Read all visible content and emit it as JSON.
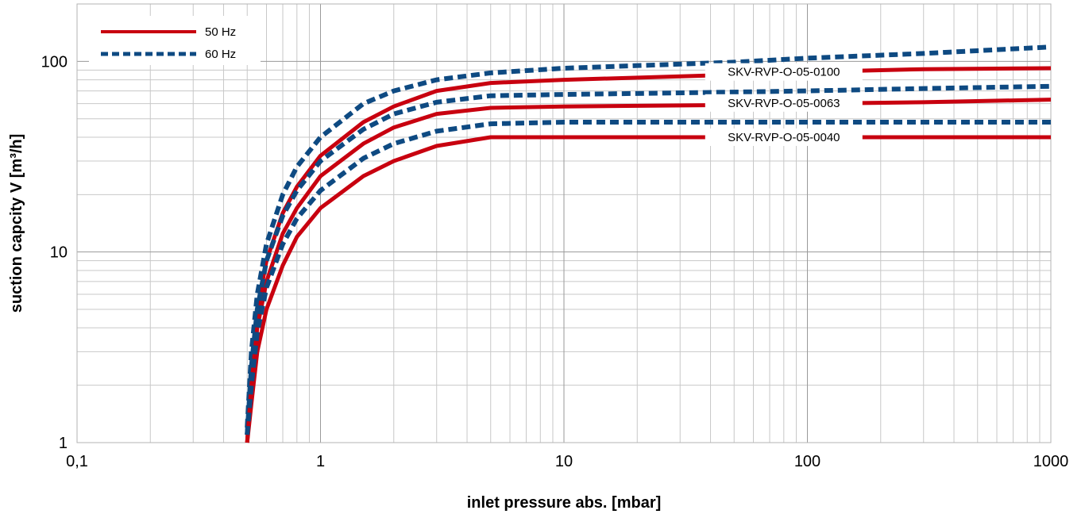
{
  "chart_data": {
    "type": "line",
    "x_scale": "log",
    "y_scale": "log",
    "xlim": [
      0.1,
      1000
    ],
    "ylim": [
      1,
      200
    ],
    "grid": true,
    "xlabel": "inlet pressure abs. [mbar]",
    "ylabel": "suction capcity V [m³/h]",
    "x_tick_labels": [
      {
        "value": 0.1,
        "label": "0,1"
      },
      {
        "value": 1,
        "label": "1"
      },
      {
        "value": 10,
        "label": "10"
      },
      {
        "value": 100,
        "label": "100"
      },
      {
        "value": 1000,
        "label": "1000"
      }
    ],
    "y_tick_labels": [
      {
        "value": 1,
        "label": "1"
      },
      {
        "value": 10,
        "label": "10"
      },
      {
        "value": 100,
        "label": "100"
      }
    ],
    "legend": {
      "placement": "top-left",
      "entries": [
        {
          "label": "50 Hz",
          "color": "#c8000f",
          "style": "solid"
        },
        {
          "label": "60 Hz",
          "color": "#0e4a82",
          "style": "dashed"
        }
      ]
    },
    "series": [
      {
        "group": "SKV-RVP-O-05-0100",
        "legend_entry": "50 Hz",
        "color": "#c8000f",
        "style": "solid",
        "x": [
          0.5,
          0.52,
          0.55,
          0.6,
          0.7,
          0.8,
          1,
          1.5,
          2,
          3,
          5,
          10,
          50,
          100,
          300,
          1000
        ],
        "y": [
          1,
          2.5,
          5,
          9,
          16,
          22,
          32,
          48,
          58,
          70,
          77,
          80,
          85,
          88,
          91,
          92
        ]
      },
      {
        "group": "SKV-RVP-O-05-0100",
        "legend_entry": "60 Hz",
        "color": "#0e4a82",
        "style": "dashed",
        "x": [
          0.5,
          0.52,
          0.55,
          0.6,
          0.7,
          0.8,
          1,
          1.5,
          2,
          3,
          5,
          10,
          50,
          100,
          300,
          1000
        ],
        "y": [
          1.2,
          3,
          6,
          11,
          20,
          28,
          40,
          60,
          70,
          80,
          87,
          92,
          99,
          104,
          110,
          119
        ]
      },
      {
        "group": "SKV-RVP-O-05-0063",
        "legend_entry": "50 Hz",
        "color": "#c8000f",
        "style": "solid",
        "x": [
          0.5,
          0.52,
          0.55,
          0.6,
          0.7,
          0.8,
          1,
          1.5,
          2,
          3,
          5,
          10,
          50,
          100,
          300,
          1000
        ],
        "y": [
          1,
          2,
          4,
          7,
          12.5,
          17,
          25,
          37,
          45,
          53,
          57,
          58,
          59,
          60,
          61,
          63
        ]
      },
      {
        "group": "SKV-RVP-O-05-0063",
        "legend_entry": "60 Hz",
        "color": "#0e4a82",
        "style": "dashed",
        "x": [
          0.5,
          0.52,
          0.55,
          0.6,
          0.7,
          0.8,
          1,
          1.5,
          2,
          3,
          5,
          10,
          50,
          100,
          300,
          1000
        ],
        "y": [
          1.1,
          2.5,
          5,
          9,
          15.5,
          21,
          30,
          44,
          53,
          61,
          66,
          67,
          69,
          70,
          72,
          74
        ]
      },
      {
        "group": "SKV-RVP-O-05-0040",
        "legend_entry": "50 Hz",
        "color": "#c8000f",
        "style": "solid",
        "x": [
          0.5,
          0.52,
          0.55,
          0.6,
          0.7,
          0.8,
          1,
          1.5,
          2,
          3,
          5,
          10,
          50,
          100,
          300,
          1000
        ],
        "y": [
          1,
          1.6,
          3,
          5,
          8.5,
          12,
          17,
          25,
          30,
          36,
          40,
          40,
          40,
          40,
          40,
          40
        ]
      },
      {
        "group": "SKV-RVP-O-05-0040",
        "legend_entry": "60 Hz",
        "color": "#0e4a82",
        "style": "dashed",
        "x": [
          0.5,
          0.52,
          0.55,
          0.6,
          0.7,
          0.8,
          1,
          1.5,
          2,
          3,
          5,
          10,
          50,
          100,
          300,
          1000
        ],
        "y": [
          1.1,
          2,
          3.8,
          6.5,
          11,
          15,
          21,
          31,
          37,
          43,
          47,
          48,
          48,
          48,
          48,
          48
        ]
      }
    ],
    "annotations": [
      {
        "text": "SKV-RVP-O-05-0100",
        "x": 80,
        "y": 88
      },
      {
        "text": "SKV-RVP-O-05-0063",
        "x": 80,
        "y": 60.5
      },
      {
        "text": "SKV-RVP-O-05-0040",
        "x": 80,
        "y": 40
      }
    ]
  }
}
